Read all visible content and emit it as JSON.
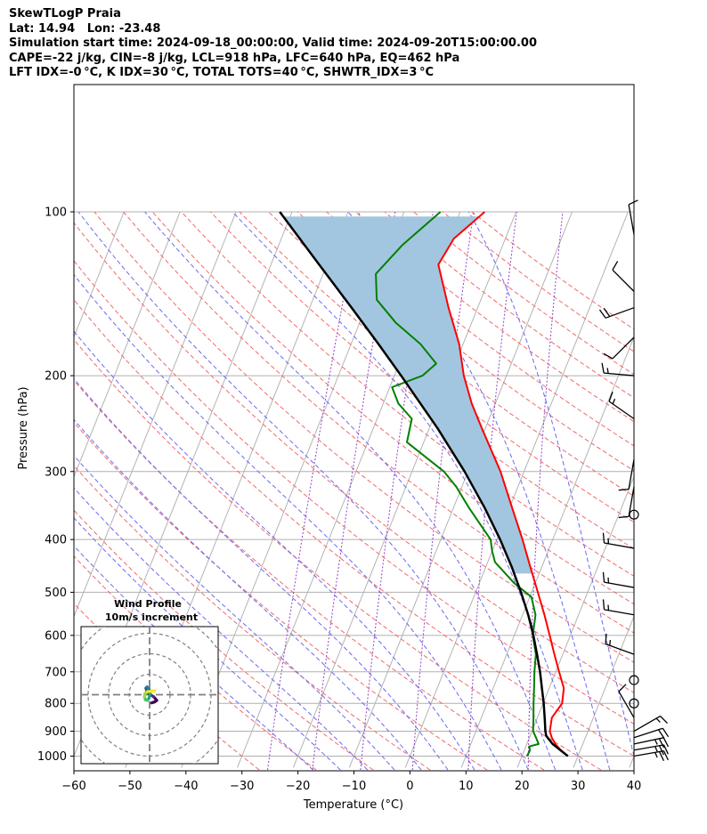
{
  "header": {
    "lines": [
      "SkewTLogP Praia",
      "Lat: 14.94   Lon: -23.48",
      "Simulation start time: 2024-09-18_00:00:00, Valid time: 2024-09-20T15:00:00.00",
      "CAPE=-22 j/kg, CIN=-8 j/kg, LCL=918 hPa, LFC=640 hPa, EQ=462 hPa",
      "LFT IDX=-0 °C, K IDX=30 °C, TOTAL TOTS=40 °C, SHWTR_IDX=3 °C"
    ]
  },
  "chart_data": {
    "type": "skewt",
    "xlabel": "Temperature (°C)",
    "ylabel": "Pressure (hPa)",
    "xlim": [
      -60,
      40
    ],
    "ylim": [
      1050,
      100
    ],
    "log_y": true,
    "x_ticks": [
      -60,
      -50,
      -40,
      -30,
      -20,
      -10,
      0,
      10,
      20,
      30,
      40
    ],
    "y_ticks": [
      1000,
      900,
      800,
      700,
      600,
      500,
      400,
      300,
      200,
      100
    ],
    "grid": true,
    "temperature": {
      "color": "#ff0000",
      "points": [
        [
          1000,
          28.2
        ],
        [
          975,
          26.5
        ],
        [
          950,
          25.1
        ],
        [
          925,
          24.0
        ],
        [
          900,
          23.2
        ],
        [
          875,
          22.9
        ],
        [
          850,
          22.6
        ],
        [
          800,
          23.4
        ],
        [
          750,
          22.6
        ],
        [
          700,
          20.6
        ],
        [
          650,
          18.5
        ],
        [
          600,
          16.3
        ],
        [
          550,
          13.9
        ],
        [
          500,
          11.1
        ],
        [
          450,
          8.0
        ],
        [
          400,
          4.6
        ],
        [
          350,
          0.5
        ],
        [
          300,
          -4.2
        ],
        [
          250,
          -10.6
        ],
        [
          225,
          -14.2
        ],
        [
          200,
          -17.6
        ],
        [
          175,
          -20.7
        ],
        [
          150,
          -25.2
        ],
        [
          125,
          -30.1
        ],
        [
          112,
          -29.2
        ],
        [
          100,
          -25.6
        ]
      ]
    },
    "dewpoint": {
      "color": "#008000",
      "points": [
        [
          1000,
          20.9
        ],
        [
          975,
          21.0
        ],
        [
          960,
          20.6
        ],
        [
          950,
          22.1
        ],
        [
          925,
          21.2
        ],
        [
          900,
          20.2
        ],
        [
          850,
          19.3
        ],
        [
          800,
          18.3
        ],
        [
          750,
          17.3
        ],
        [
          700,
          16.2
        ],
        [
          650,
          15.2
        ],
        [
          600,
          13.3
        ],
        [
          550,
          12.3
        ],
        [
          510,
          10.3
        ],
        [
          480,
          6.1
        ],
        [
          440,
          1.3
        ],
        [
          420,
          0.0
        ],
        [
          400,
          -1.1
        ],
        [
          350,
          -7.2
        ],
        [
          320,
          -11.0
        ],
        [
          300,
          -14.3
        ],
        [
          265,
          -23.0
        ],
        [
          240,
          -23.8
        ],
        [
          225,
          -27.3
        ],
        [
          210,
          -29.6
        ],
        [
          200,
          -25.0
        ],
        [
          190,
          -23.4
        ],
        [
          175,
          -27.6
        ],
        [
          160,
          -33.5
        ],
        [
          145,
          -38.6
        ],
        [
          130,
          -40.6
        ],
        [
          115,
          -37.9
        ],
        [
          100,
          -33.5
        ]
      ]
    },
    "parcel": {
      "color": "#000000",
      "points": [
        [
          1000,
          28.2
        ],
        [
          950,
          24.6
        ],
        [
          918,
          22.9
        ],
        [
          900,
          22.4
        ],
        [
          850,
          21.3
        ],
        [
          800,
          20.1
        ],
        [
          750,
          18.7
        ],
        [
          700,
          17.2
        ],
        [
          650,
          15.4
        ],
        [
          600,
          13.4
        ],
        [
          550,
          11.0
        ],
        [
          500,
          8.1
        ],
        [
          450,
          4.7
        ],
        [
          400,
          0.6
        ],
        [
          350,
          -4.4
        ],
        [
          300,
          -10.6
        ],
        [
          250,
          -18.5
        ],
        [
          200,
          -28.8
        ],
        [
          175,
          -35.1
        ],
        [
          150,
          -42.5
        ],
        [
          125,
          -51.4
        ],
        [
          100,
          -62.2
        ]
      ]
    },
    "cape_shading": {
      "color": "#a3c6e0",
      "from_hpa": 100,
      "to_hpa": 462
    },
    "wind_barbs": [
      {
        "p": 1000,
        "dir": 80,
        "speed": 25
      },
      {
        "p": 975,
        "dir": 80,
        "speed": 25
      },
      {
        "p": 950,
        "dir": 78,
        "speed": 25
      },
      {
        "p": 925,
        "dir": 72,
        "speed": 20
      },
      {
        "p": 900,
        "dir": 60,
        "speed": 15
      },
      {
        "p": 850,
        "dir": 330,
        "speed": 10
      },
      {
        "p": 800,
        "dir": 0,
        "speed": 0
      },
      {
        "p": 725,
        "dir": 0,
        "speed": 0
      },
      {
        "p": 650,
        "dir": 290,
        "speed": 15
      },
      {
        "p": 550,
        "dir": 280,
        "speed": 15
      },
      {
        "p": 490,
        "dir": 280,
        "speed": 15
      },
      {
        "p": 415,
        "dir": 280,
        "speed": 15
      },
      {
        "p": 360,
        "dir": 0,
        "speed": 0
      },
      {
        "p": 320,
        "dir": 190,
        "speed": 10
      },
      {
        "p": 285,
        "dir": 190,
        "speed": 10
      },
      {
        "p": 240,
        "dir": 305,
        "speed": 15
      },
      {
        "p": 200,
        "dir": 275,
        "speed": 15
      },
      {
        "p": 170,
        "dir": 225,
        "speed": 10
      },
      {
        "p": 150,
        "dir": 250,
        "speed": 20
      },
      {
        "p": 140,
        "dir": 315,
        "speed": 10
      },
      {
        "p": 110,
        "dir": 350,
        "speed": 10
      }
    ],
    "hodograph": {
      "title": "Wind Profile",
      "subtitle": "10m/s increment",
      "ring_spacing_ms": 10,
      "points": [
        [
          1.0,
          -4.0
        ],
        [
          2.5,
          -3.5
        ],
        [
          3.5,
          -2.8
        ],
        [
          2.0,
          -1.0
        ],
        [
          -0.5,
          0.5
        ],
        [
          -1.5,
          2.0
        ],
        [
          -1.8,
          3.2
        ],
        [
          -1.3,
          3.8
        ],
        [
          -0.4,
          3.2
        ],
        [
          0.3,
          1.0
        ],
        [
          -0.2,
          -1.5
        ],
        [
          -1.0,
          -2.8
        ],
        [
          -2.0,
          -2.5
        ],
        [
          -2.5,
          -1.0
        ],
        [
          -2.3,
          0.5
        ],
        [
          -1.0,
          1.5
        ],
        [
          2.5,
          1.8
        ],
        [
          1.2,
          2.0
        ]
      ]
    }
  }
}
